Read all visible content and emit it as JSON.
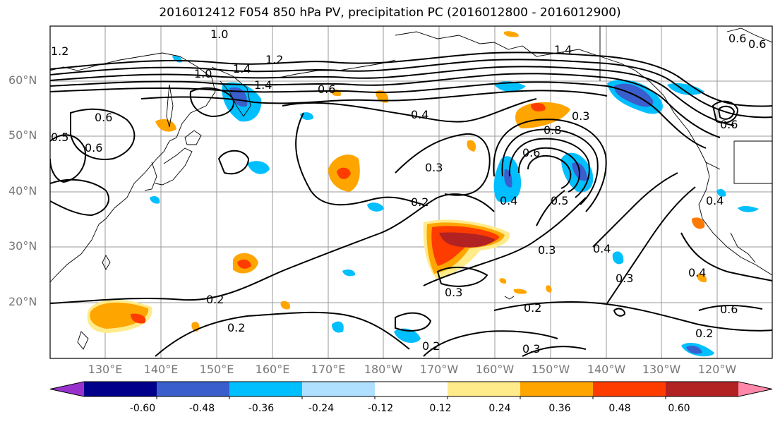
{
  "title": "2016012412 F054 850 hPa PV, precipitation PC (2016012800 - 2016012900)",
  "lat_labels": [
    "60°N",
    "50°N",
    "40°N",
    "30°N",
    "20°N"
  ],
  "lon_labels": [
    "130°E",
    "140°E",
    "150°E",
    "160°E",
    "170°E",
    "180°W",
    "170°W",
    "160°W",
    "150°W",
    "140°W",
    "130°W",
    "120°W"
  ],
  "colorbar": {
    "ticks": [
      "-0.60",
      "-0.48",
      "-0.36",
      "-0.24",
      "-0.12",
      "0.12",
      "0.24",
      "0.36",
      "0.48",
      "0.60"
    ],
    "colors": [
      "#9932cc",
      "#00008b",
      "#3a5fcd",
      "#00bfff",
      "#b0e0ff",
      "#ffffff",
      "#ffeb8a",
      "#ffa500",
      "#ff3c00",
      "#b22222",
      "#ff88aa"
    ]
  },
  "contour_labels": [
    "1.4",
    "1.2",
    "1.0",
    "1.4",
    "1.2",
    "1.0",
    "0.6",
    "0.6",
    "0.5",
    "0.4",
    "0.3",
    "0.8",
    "0.6",
    "0.4",
    "0.5",
    "0.3",
    "0.2",
    "0.3",
    "0.2",
    "0.2",
    "0.3",
    "0.2",
    "0.2",
    "0.3",
    "0.4",
    "0.4",
    "0.6",
    "0.4",
    "0.3",
    "0.6",
    "0.2",
    "0.6",
    "0.6",
    "1.4",
    "0.6"
  ]
}
